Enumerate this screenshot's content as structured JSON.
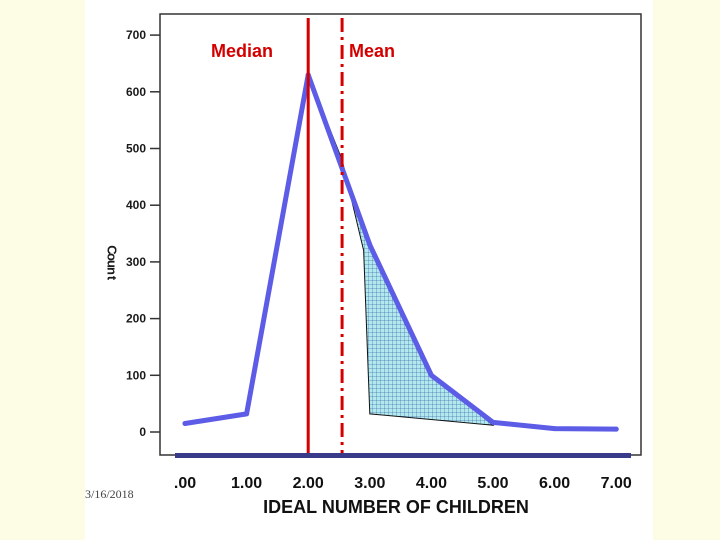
{
  "footer": {
    "date": "3/16/2018"
  },
  "chart_data": {
    "type": "line",
    "xlabel": "IDEAL NUMBER OF CHILDREN",
    "ylabel": "Count",
    "x": [
      0,
      1,
      2,
      3,
      4,
      5,
      6,
      7
    ],
    "x_tick_labels": [
      ".00",
      "1.00",
      "2.00",
      "3.00",
      "4.00",
      "5.00",
      "6.00",
      "7.00"
    ],
    "series": [
      {
        "values": [
          15,
          32,
          630,
          330,
          100,
          17,
          6,
          5
        ]
      }
    ],
    "ylim": [
      0,
      700
    ],
    "y_ticks": [
      0,
      100,
      200,
      300,
      400,
      500,
      600,
      700
    ],
    "y_tick_labels": [
      "0",
      "100",
      "200",
      "300",
      "400",
      "500",
      "600",
      "700"
    ],
    "shaded_region": {
      "points": [
        [
          2.0,
          630
        ],
        [
          2.55,
          480
        ],
        [
          2.9,
          320
        ],
        [
          3.0,
          32
        ],
        [
          5.0,
          12
        ],
        [
          4.0,
          100
        ],
        [
          3.0,
          330
        ]
      ]
    },
    "annotations": [
      {
        "text": "Median",
        "x": 2.0,
        "line_style": "solid"
      },
      {
        "text": "Mean",
        "x": 2.55,
        "line_style": "dash-dot"
      }
    ],
    "colors": {
      "line": "#5c5ce6",
      "annotation": "#d40000",
      "shade": "#aee8ee",
      "axis_bar": "#3a3a8a"
    },
    "grid": false
  }
}
